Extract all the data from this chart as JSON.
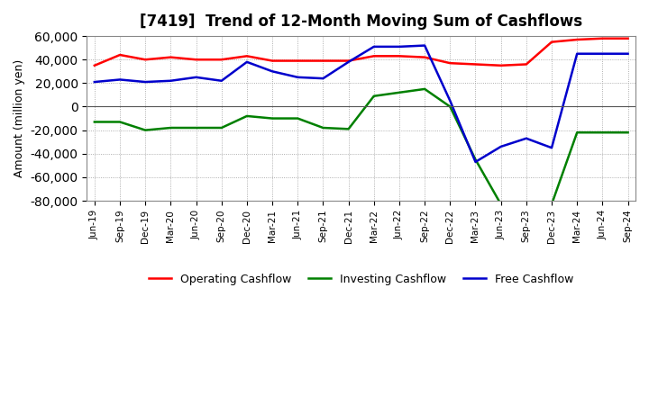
{
  "title": "[7419]  Trend of 12-Month Moving Sum of Cashflows",
  "xlabel": "",
  "ylabel": "Amount (million yen)",
  "ylim": [
    -80000,
    60000
  ],
  "yticks": [
    -80000,
    -60000,
    -40000,
    -20000,
    0,
    20000,
    40000,
    60000
  ],
  "background_color": "#ffffff",
  "plot_bg_color": "#ffffff",
  "grid_color": "#999999",
  "labels": [
    "Jun-19",
    "Sep-19",
    "Dec-19",
    "Mar-20",
    "Jun-20",
    "Sep-20",
    "Dec-20",
    "Mar-21",
    "Jun-21",
    "Sep-21",
    "Dec-21",
    "Mar-22",
    "Jun-22",
    "Sep-22",
    "Dec-22",
    "Mar-23",
    "Jun-23",
    "Sep-23",
    "Dec-23",
    "Mar-24",
    "Jun-24",
    "Sep-24"
  ],
  "operating": [
    35000,
    44000,
    40000,
    42000,
    40000,
    40000,
    43000,
    39000,
    39000,
    39000,
    39000,
    43000,
    43000,
    42000,
    37000,
    36000,
    35000,
    36000,
    55000,
    57000,
    58000,
    58000
  ],
  "investing": [
    -13000,
    -13000,
    -20000,
    -18000,
    -18000,
    -18000,
    -8000,
    -10000,
    -10000,
    -18000,
    -19000,
    9000,
    12000,
    15000,
    0,
    -45000,
    -83000,
    -84000,
    -83000,
    -22000,
    -22000,
    -22000
  ],
  "free": [
    21000,
    23000,
    21000,
    22000,
    25000,
    22000,
    38000,
    30000,
    25000,
    24000,
    38000,
    51000,
    51000,
    52000,
    5000,
    -47000,
    -34000,
    -27000,
    -35000,
    45000,
    45000,
    45000
  ],
  "operating_color": "#ff0000",
  "investing_color": "#008000",
  "free_color": "#0000cc",
  "line_width": 1.8
}
